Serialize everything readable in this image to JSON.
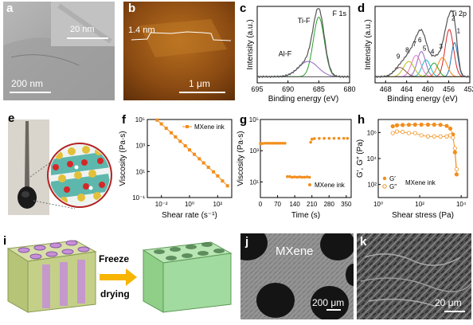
{
  "labels": {
    "a": "a",
    "b": "b",
    "c": "c",
    "d": "d",
    "e": "e",
    "f": "f",
    "g": "g",
    "h": "h",
    "i": "i",
    "j": "j",
    "k": "k"
  },
  "panel_a": {
    "scale_main": "200 nm",
    "scale_inset": "20 nm"
  },
  "panel_b": {
    "height": "1.4 nm",
    "scale": "1 μm"
  },
  "panel_i": {
    "arrow_top": "Freeze",
    "arrow_bottom": "drying"
  },
  "panel_j": {
    "title": "MXene",
    "scale": "200 μm"
  },
  "panel_k": {
    "scale": "20 μm"
  },
  "chart_data": [
    {
      "id": "c",
      "type": "line",
      "title": "F 1s",
      "xlabel": "Binding energy (eV)",
      "ylabel": "Intensity (a.u.)",
      "xlim": [
        695,
        680
      ],
      "xticks": [
        695,
        690,
        685,
        680
      ],
      "annotations": [
        "Ti-F",
        "Al-F"
      ],
      "series": [
        {
          "name": "Ti-F",
          "color": "#2ca02c",
          "center": 685.0,
          "width": 0.9,
          "amp": 0.78
        },
        {
          "name": "Al-F",
          "color": "#9467bd",
          "center": 686.7,
          "width": 1.6,
          "amp": 0.2
        }
      ]
    },
    {
      "id": "d",
      "type": "line",
      "title": "Ti 2p",
      "xlabel": "Binding energy (eV)",
      "ylabel": "Intensity (a.u.)",
      "xlim": [
        470,
        452
      ],
      "xticks": [
        468,
        464,
        460,
        456,
        452
      ],
      "annotations": [
        "1",
        "2",
        "3",
        "4",
        "5",
        "6",
        "7",
        "8",
        "9"
      ],
      "series": [
        {
          "name": "1",
          "color": "#1f77b4",
          "center": 454.9,
          "width": 0.6,
          "amp": 0.45
        },
        {
          "name": "2",
          "color": "#d62728",
          "center": 455.9,
          "width": 0.8,
          "amp": 0.62
        },
        {
          "name": "3",
          "color": "#ff7f0e",
          "center": 457.2,
          "width": 0.9,
          "amp": 0.25
        },
        {
          "name": "4",
          "color": "#2ca02c",
          "center": 458.8,
          "width": 0.8,
          "amp": 0.18
        },
        {
          "name": "5",
          "color": "#17becf",
          "center": 460.3,
          "width": 0.8,
          "amp": 0.22
        },
        {
          "name": "6",
          "color": "#9467bd",
          "center": 461.2,
          "width": 0.8,
          "amp": 0.33
        },
        {
          "name": "7",
          "color": "#e377c2",
          "center": 462.2,
          "width": 0.9,
          "amp": 0.28
        },
        {
          "name": "8",
          "color": "#bcbd22",
          "center": 463.6,
          "width": 1.0,
          "amp": 0.2
        },
        {
          "name": "9",
          "color": "#8c564b",
          "center": 465.3,
          "width": 1.1,
          "amp": 0.12
        }
      ]
    },
    {
      "id": "f",
      "type": "line",
      "scale": "log-log",
      "xlabel": "Shear rate (s⁻¹)",
      "ylabel": "Viscosity (Pa·s)",
      "xlim": [
        0.001,
        1000
      ],
      "ylim": [
        0.1,
        100000
      ],
      "xticks": [
        "10⁻²",
        "10⁰",
        "10²"
      ],
      "yticks": [
        "10⁻¹",
        "10¹",
        "10³",
        "10⁵"
      ],
      "legend": "MXene ink",
      "legend_position": "top-right",
      "color": "#f28e1c",
      "x": [
        0.005,
        0.01,
        0.022,
        0.05,
        0.1,
        0.22,
        0.5,
        1,
        2.2,
        5,
        10,
        22,
        50,
        100,
        220,
        500
      ],
      "y": [
        90000,
        46000,
        21000,
        9500,
        4600,
        2100,
        950,
        460,
        210,
        95,
        46,
        21,
        9.5,
        4.6,
        1.9,
        0.8
      ]
    },
    {
      "id": "g",
      "type": "scatter",
      "scale": "log-y",
      "xlabel": "Time (s)",
      "ylabel": "Viscosity (Pa·s)",
      "xlim": [
        0,
        370
      ],
      "ylim": [
        1,
        100000
      ],
      "xticks": [
        0,
        70,
        140,
        210,
        280,
        350
      ],
      "yticks": [
        "10¹",
        "10³",
        "10⁵"
      ],
      "legend": "MXene ink",
      "legend_position": "bottom-right",
      "color": "#f28e1c",
      "segments": [
        {
          "x": [
            0,
            5,
            10,
            20,
            30,
            40,
            50,
            60,
            70,
            80,
            90,
            100
          ],
          "y": [
            2800,
            2900,
            2950,
            3000,
            3000,
            3000,
            3000,
            3000,
            3000,
            3000,
            3000,
            3000
          ]
        },
        {
          "x": [
            110,
            120,
            130,
            140,
            150,
            160,
            170,
            180,
            190,
            200
          ],
          "y": [
            22,
            22,
            20,
            21,
            20,
            21,
            20,
            20,
            21,
            20
          ]
        },
        {
          "x": [
            205,
            210,
            220,
            240,
            260,
            280,
            300,
            320,
            340,
            355
          ],
          "y": [
            3500,
            5500,
            6000,
            6100,
            6200,
            6200,
            6200,
            6200,
            6200,
            6200
          ]
        }
      ]
    },
    {
      "id": "h",
      "type": "scatter",
      "scale": "log-log",
      "xlabel": "Shear stress (Pa)",
      "ylabel": "G′, G″ (Pa)",
      "xlim": [
        1,
        20000
      ],
      "ylim": [
        10,
        10000000
      ],
      "xticks": [
        "10⁰",
        "10²",
        "10⁴"
      ],
      "yticks": [
        "10²",
        "10⁴",
        "10⁶"
      ],
      "legend": [
        "G′",
        "G″"
      ],
      "legend_title": "MXene ink",
      "legend_position": "bottom-left",
      "color": "#f28e1c",
      "series": [
        {
          "name": "G′",
          "filled": true,
          "x": [
            5,
            8,
            15,
            30,
            60,
            120,
            250,
            500,
            1000,
            2000,
            3000,
            4000,
            5000,
            6000
          ],
          "y": [
            3000000,
            3600000,
            3800000,
            3900000,
            4000000,
            4000000,
            4000000,
            4000000,
            3900000,
            3200000,
            2000000,
            700000,
            30000,
            600
          ]
        },
        {
          "name": "G″",
          "filled": false,
          "x": [
            5,
            8,
            15,
            30,
            60,
            120,
            250,
            500,
            1000,
            2000,
            3000,
            4000,
            5000,
            6000
          ],
          "y": [
            900000,
            1200000,
            1100000,
            900000,
            900000,
            600000,
            500000,
            500000,
            500000,
            500000,
            600000,
            400000,
            60000,
            1500
          ]
        }
      ]
    }
  ]
}
